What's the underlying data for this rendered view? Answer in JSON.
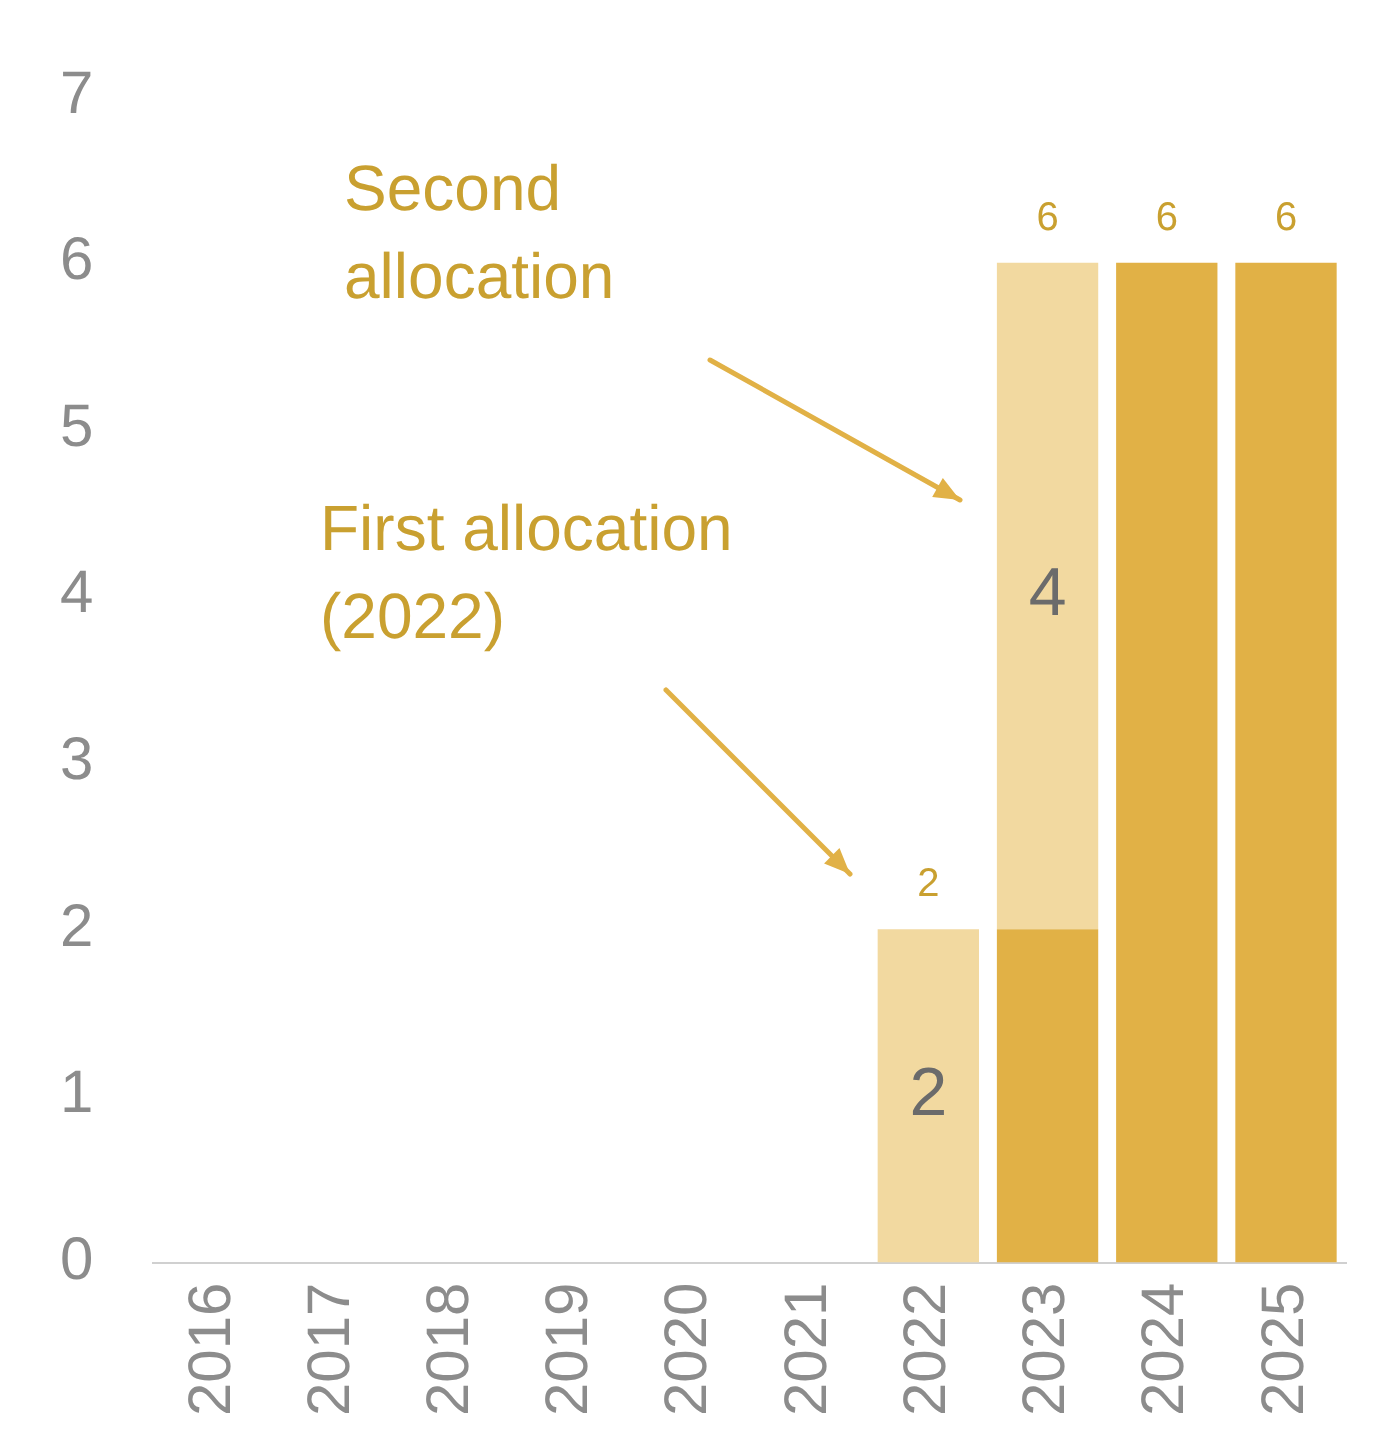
{
  "chart_data": {
    "type": "bar",
    "stacked": true,
    "categories": [
      "2016",
      "2017",
      "2018",
      "2019",
      "2020",
      "2021",
      "2022",
      "2023",
      "2024",
      "2025"
    ],
    "series": [
      {
        "color": "#e1b146",
        "values": [
          null,
          null,
          null,
          null,
          null,
          null,
          null,
          2,
          6,
          6
        ]
      },
      {
        "color": "#f2d9a0",
        "values": [
          null,
          null,
          null,
          null,
          null,
          null,
          2,
          4,
          null,
          null
        ],
        "value_labels": [
          null,
          null,
          null,
          null,
          null,
          null,
          "2",
          "4",
          null,
          null
        ]
      }
    ],
    "totals": [
      null,
      null,
      null,
      null,
      null,
      null,
      "2",
      "6",
      "6",
      "6"
    ],
    "ylim": [
      0,
      7
    ],
    "yticks": [
      0,
      1,
      2,
      3,
      4,
      5,
      6,
      7
    ],
    "grid": false,
    "legend": false,
    "annotations": [
      "Second allocation",
      "First allocation (2022)"
    ]
  }
}
